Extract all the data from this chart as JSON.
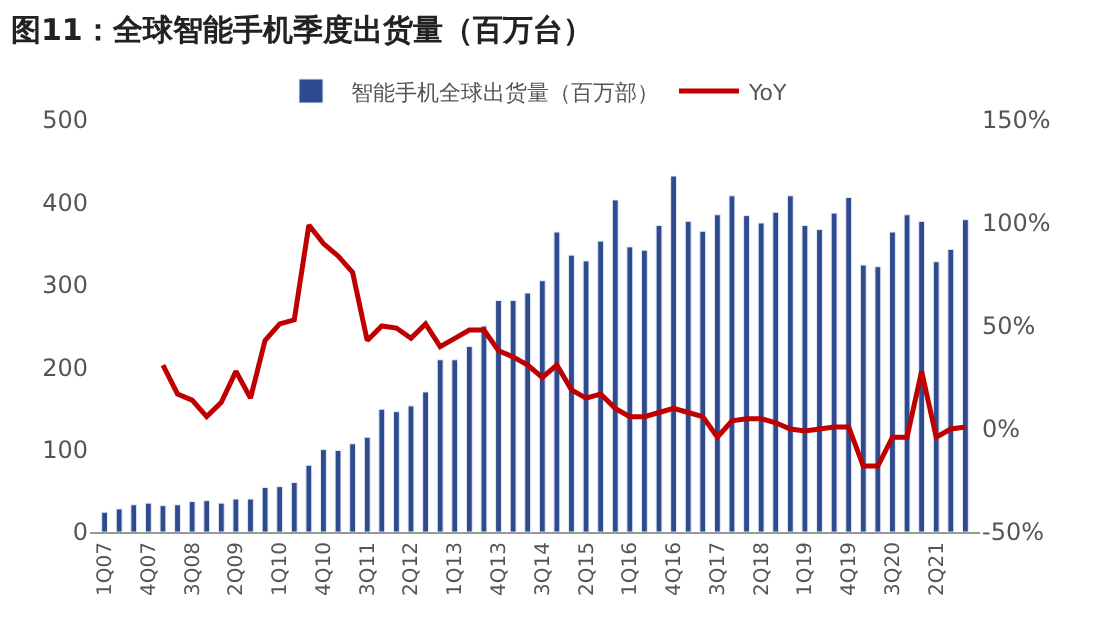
{
  "chart_data": {
    "type": "bar",
    "title": "图11：全球智能手机季度出货量（百万台）",
    "categories": [
      "1Q07",
      null,
      null,
      "4Q07",
      null,
      null,
      "3Q08",
      null,
      null,
      "2Q09",
      null,
      null,
      "1Q10",
      null,
      null,
      "4Q10",
      null,
      null,
      "3Q11",
      null,
      null,
      "2Q12",
      null,
      null,
      "1Q13",
      null,
      null,
      "4Q13",
      null,
      null,
      "3Q14",
      null,
      null,
      "2Q15",
      null,
      null,
      "1Q16",
      null,
      null,
      "4Q16",
      null,
      null,
      "3Q17",
      null,
      null,
      "2Q18",
      null,
      null,
      "1Q19",
      null,
      null,
      "4Q19",
      null,
      null,
      "3Q20",
      null,
      null,
      "2Q21",
      null,
      null
    ],
    "series": [
      {
        "name": "智能手机全球出货量（百万部）",
        "color": "#2f4b8f",
        "values": [
          24,
          28,
          33,
          35,
          32,
          33,
          37,
          38,
          35,
          40,
          40,
          54,
          55,
          60,
          81,
          100,
          99,
          107,
          115,
          149,
          146,
          153,
          170,
          209,
          209,
          225,
          250,
          281,
          281,
          290,
          305,
          364,
          336,
          329,
          353,
          403,
          346,
          342,
          372,
          432,
          377,
          365,
          385,
          408,
          384,
          375,
          388,
          408,
          372,
          367,
          387,
          406,
          324,
          322,
          364,
          385,
          377,
          328,
          343,
          379
        ]
      },
      {
        "name": "YoY",
        "type": "line",
        "axis": "y2",
        "color": "#c00000",
        "values": [
          null,
          null,
          null,
          null,
          31,
          17,
          14,
          6,
          13,
          28,
          15,
          43,
          51,
          53,
          99,
          90,
          84,
          76,
          43,
          50,
          49,
          44,
          51,
          40,
          44,
          48,
          48,
          38,
          35,
          31,
          25,
          31,
          19,
          15,
          17,
          10,
          6,
          6,
          8,
          10,
          8,
          6,
          -4,
          4,
          5,
          5,
          3,
          0,
          -1,
          0,
          1,
          1,
          -18,
          -18,
          -4,
          -4,
          28,
          -4,
          0,
          1
        ]
      }
    ],
    "ylim": [
      0,
      500
    ],
    "yticks": [
      0,
      100,
      200,
      300,
      400,
      500
    ],
    "y2lim": [
      -50,
      150
    ],
    "y2ticks": [
      {
        "value": -50,
        "label": "-50%"
      },
      {
        "value": 0,
        "label": "0%"
      },
      {
        "value": 50,
        "label": "50%"
      },
      {
        "value": 100,
        "label": "100%"
      },
      {
        "value": 150,
        "label": "150%"
      }
    ],
    "legend": "top",
    "marker": "none"
  }
}
